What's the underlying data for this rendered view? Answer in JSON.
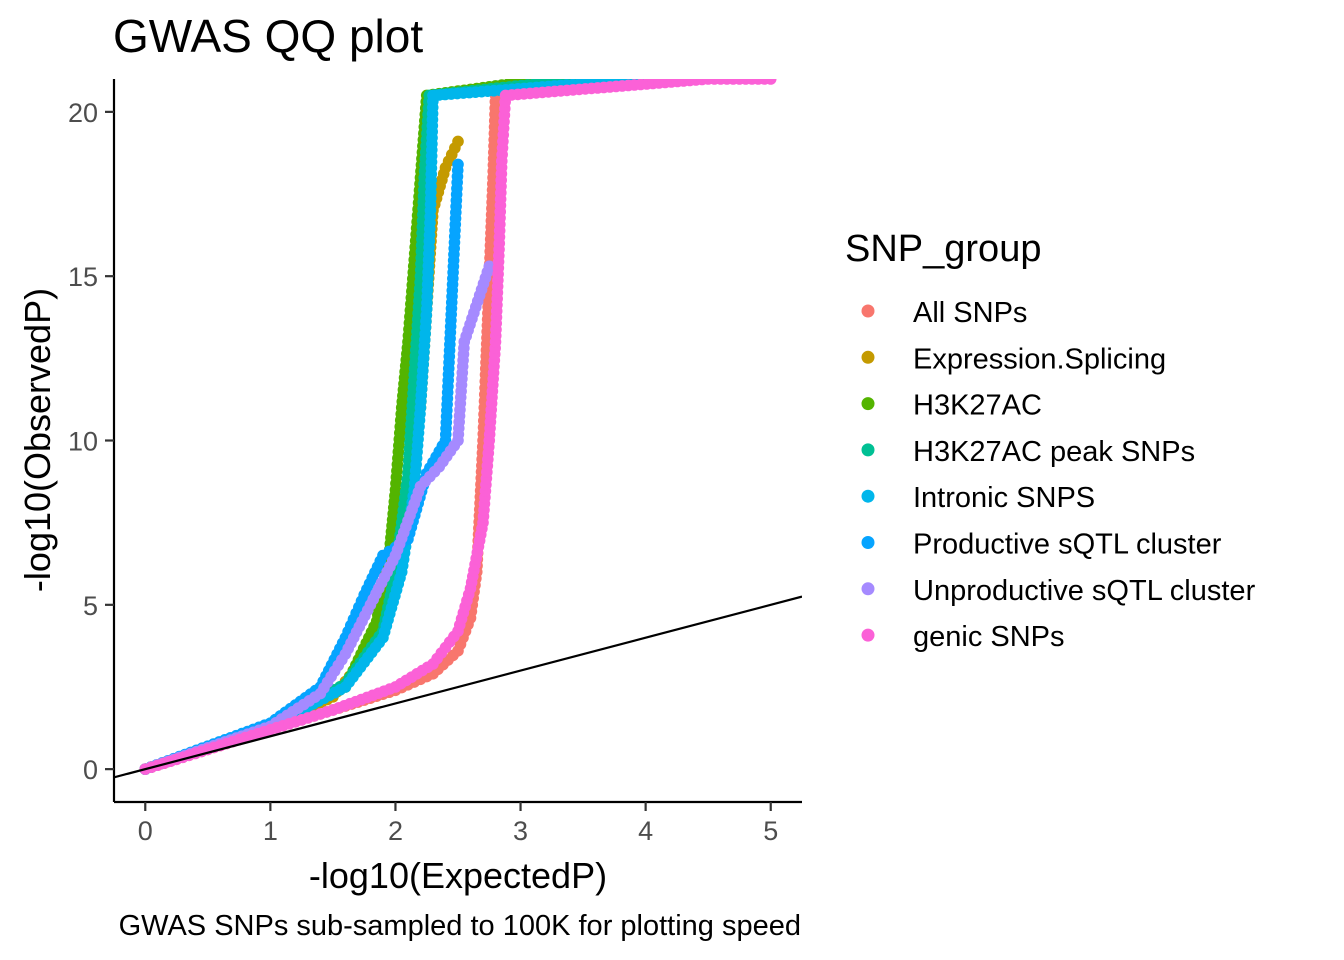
{
  "title": "GWAS QQ plot",
  "caption": "GWAS SNPs sub-sampled to 100K for plotting speed",
  "chart_data": {
    "type": "scatter",
    "title": "GWAS QQ plot",
    "xlabel": "-log10(ExpectedP)",
    "ylabel": "-log10(ObservedP)",
    "xlim": [
      -0.25,
      5.25
    ],
    "ylim": [
      -1,
      21
    ],
    "y_clipped_at": 21,
    "x_ticks": [
      "0",
      "1",
      "2",
      "3",
      "4",
      "5"
    ],
    "y_ticks": [
      "0",
      "5",
      "10",
      "15",
      "20"
    ],
    "reference_line": {
      "slope": 1,
      "intercept": 0
    },
    "grid": false,
    "legend_title": "SNP_group",
    "legend_position": "right",
    "series": [
      {
        "name": "All SNPs",
        "color": "#F8766D",
        "points": [
          [
            0,
            0
          ],
          [
            0.5,
            0.6
          ],
          [
            1,
            1.2
          ],
          [
            1.5,
            1.8
          ],
          [
            2,
            2.4
          ],
          [
            2.3,
            2.9
          ],
          [
            2.5,
            3.6
          ],
          [
            2.6,
            4.6
          ],
          [
            2.65,
            6
          ],
          [
            2.7,
            10
          ],
          [
            2.72,
            12
          ],
          [
            2.75,
            15
          ],
          [
            2.78,
            18
          ],
          [
            2.8,
            20.5
          ]
        ]
      },
      {
        "name": "Expression.Splicing",
        "color": "#C49A00",
        "points": [
          [
            0,
            0
          ],
          [
            1,
            1.3
          ],
          [
            1.5,
            2.2
          ],
          [
            1.8,
            3.6
          ],
          [
            2.0,
            6
          ],
          [
            2.1,
            8
          ],
          [
            2.2,
            11
          ],
          [
            2.25,
            14
          ],
          [
            2.3,
            17
          ],
          [
            2.4,
            18.3
          ],
          [
            2.5,
            19.1
          ]
        ]
      },
      {
        "name": "H3K27AC",
        "color": "#53B400",
        "points": [
          [
            0,
            0
          ],
          [
            1,
            1.3
          ],
          [
            1.6,
            2.5
          ],
          [
            1.85,
            4.5
          ],
          [
            1.95,
            6.5
          ],
          [
            2.0,
            8.5
          ],
          [
            2.05,
            11
          ],
          [
            2.1,
            13
          ],
          [
            2.15,
            15.5
          ],
          [
            2.2,
            18
          ],
          [
            2.25,
            20.5
          ],
          [
            3.2,
            21
          ]
        ]
      },
      {
        "name": "H3K27AC peak SNPs",
        "color": "#00C094",
        "points": [
          [
            0,
            0
          ],
          [
            1,
            1.3
          ],
          [
            1.6,
            2.6
          ],
          [
            1.9,
            4.2
          ],
          [
            2.0,
            6
          ],
          [
            2.1,
            9
          ],
          [
            2.15,
            12
          ],
          [
            2.2,
            15
          ],
          [
            2.23,
            18
          ],
          [
            2.27,
            20.5
          ],
          [
            3.5,
            21
          ]
        ]
      },
      {
        "name": "Intronic SNPS",
        "color": "#00B6EB",
        "points": [
          [
            0,
            0
          ],
          [
            1,
            1.3
          ],
          [
            1.6,
            2.5
          ],
          [
            1.9,
            4
          ],
          [
            2.05,
            6
          ],
          [
            2.15,
            8.5
          ],
          [
            2.2,
            11
          ],
          [
            2.25,
            14
          ],
          [
            2.28,
            17
          ],
          [
            2.3,
            20.5
          ],
          [
            4.0,
            21
          ]
        ]
      },
      {
        "name": "Productive sQTL cluster",
        "color": "#06A4FF",
        "points": [
          [
            0,
            0
          ],
          [
            1,
            1.4
          ],
          [
            1.4,
            2.5
          ],
          [
            1.6,
            4.0
          ],
          [
            1.75,
            5.3
          ],
          [
            1.9,
            6.5
          ],
          [
            2.1,
            7.0
          ],
          [
            2.25,
            9.0
          ],
          [
            2.4,
            10
          ],
          [
            2.5,
            18.4
          ]
        ]
      },
      {
        "name": "Unproductive sQTL cluster",
        "color": "#A58AFF",
        "points": [
          [
            0,
            0
          ],
          [
            1,
            1.3
          ],
          [
            1.4,
            2.3
          ],
          [
            1.6,
            3.5
          ],
          [
            1.8,
            5.0
          ],
          [
            2.0,
            6.5
          ],
          [
            2.2,
            8.6
          ],
          [
            2.35,
            9.2
          ],
          [
            2.5,
            10.0
          ],
          [
            2.55,
            13.0
          ],
          [
            2.75,
            15.3
          ]
        ]
      },
      {
        "name": "genic SNPs",
        "color": "#FB61D7",
        "points": [
          [
            0,
            0
          ],
          [
            0.5,
            0.6
          ],
          [
            1,
            1.2
          ],
          [
            1.5,
            1.8
          ],
          [
            2,
            2.5
          ],
          [
            2.3,
            3.2
          ],
          [
            2.5,
            4.2
          ],
          [
            2.6,
            5.5
          ],
          [
            2.7,
            7.5
          ],
          [
            2.75,
            10
          ],
          [
            2.8,
            13
          ],
          [
            2.83,
            16
          ],
          [
            2.85,
            18.5
          ],
          [
            2.88,
            20.5
          ],
          [
            4.5,
            21
          ],
          [
            5.0,
            21
          ]
        ]
      }
    ]
  }
}
